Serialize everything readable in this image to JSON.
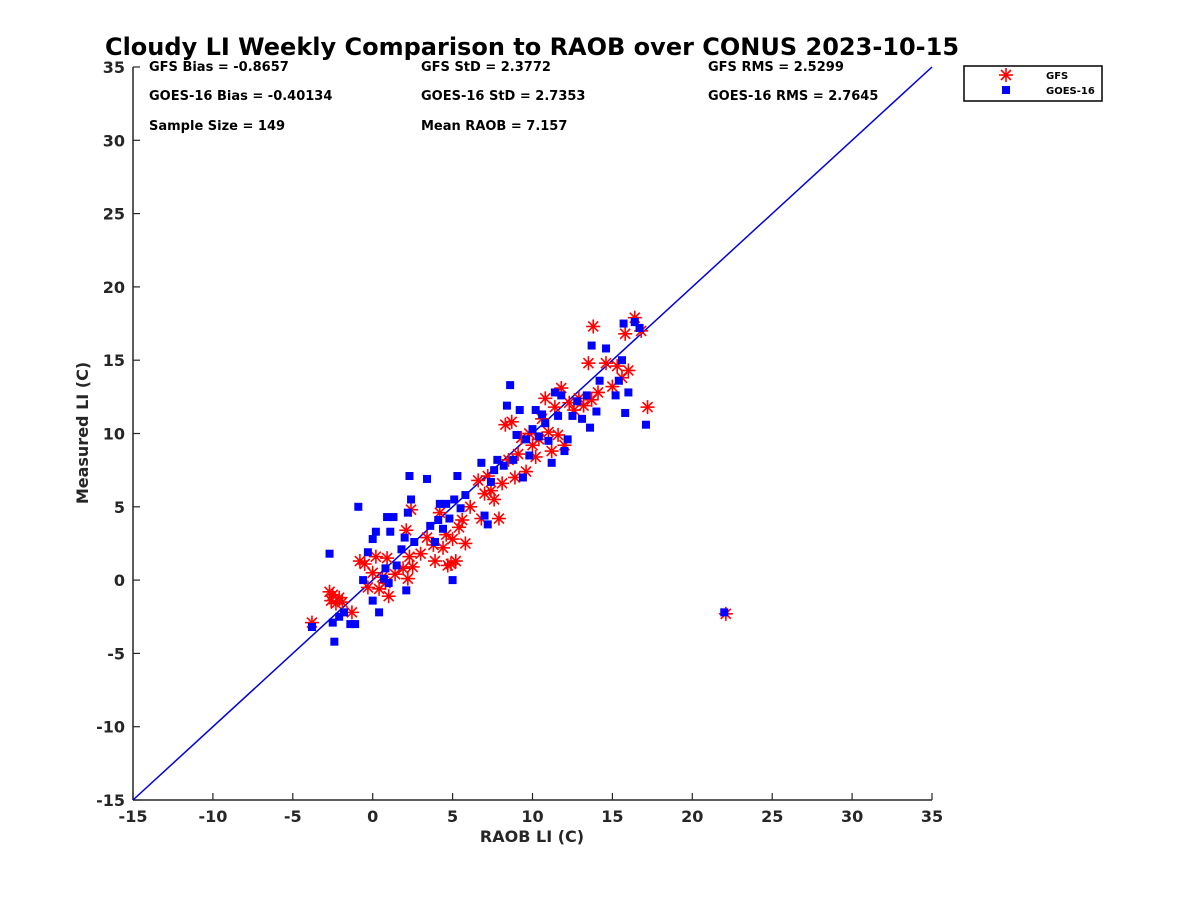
{
  "chart_data": {
    "type": "scatter",
    "title": "Cloudy LI Weekly Comparison to RAOB over CONUS 2023-10-15",
    "xlabel": "RAOB LI (C)",
    "ylabel": "Measured LI (C)",
    "xlim": [
      -15,
      35
    ],
    "ylim": [
      -15,
      35
    ],
    "xticks": [
      "-15",
      "-10",
      "-5",
      "0",
      "5",
      "10",
      "15",
      "20",
      "25",
      "30",
      "35"
    ],
    "yticks": [
      "-15",
      "-10",
      "-5",
      "0",
      "5",
      "10",
      "15",
      "20",
      "25",
      "30",
      "35"
    ],
    "grid": false,
    "legend_position": "top-right, outside plot",
    "reference_line": {
      "from": [
        -15,
        -15
      ],
      "to": [
        35,
        35
      ],
      "color": "#0000dd"
    },
    "stats": [
      {
        "id": "gfs-bias",
        "text": "GFS Bias = -0.8657"
      },
      {
        "id": "gfs-std",
        "text": "GFS StD = 2.3772"
      },
      {
        "id": "gfs-rms",
        "text": "GFS RMS = 2.5299"
      },
      {
        "id": "goes-bias",
        "text": "GOES-16 Bias = -0.40134"
      },
      {
        "id": "goes-std",
        "text": "GOES-16 StD = 2.7353"
      },
      {
        "id": "goes-rms",
        "text": "GOES-16 RMS = 2.7645"
      },
      {
        "id": "sample-size",
        "text": "Sample Size = 149"
      },
      {
        "id": "mean-raob",
        "text": "Mean RAOB = 7.157"
      }
    ],
    "series": [
      {
        "name": "GFS",
        "marker": "asterisk",
        "color": "#ff0000",
        "points": [
          [
            -3.8,
            -2.9
          ],
          [
            -2.7,
            -0.8
          ],
          [
            -2.5,
            -1.0
          ],
          [
            -2.6,
            -1.4
          ],
          [
            -2.3,
            -1.6
          ],
          [
            -2.1,
            -1.2
          ],
          [
            -1.9,
            -1.5
          ],
          [
            -1.3,
            -2.2
          ],
          [
            -0.8,
            1.3
          ],
          [
            -0.5,
            1.1
          ],
          [
            -0.3,
            -0.5
          ],
          [
            0,
            0.5
          ],
          [
            0.2,
            1.6
          ],
          [
            0.4,
            -0.6
          ],
          [
            0.6,
            0.2
          ],
          [
            0.8,
            -0.2
          ],
          [
            0.9,
            1.5
          ],
          [
            1.0,
            -1.1
          ],
          [
            1.4,
            0.4
          ],
          [
            1.9,
            0.8
          ],
          [
            2.1,
            3.4
          ],
          [
            2.2,
            0.1
          ],
          [
            2.3,
            1.6
          ],
          [
            2.4,
            4.8
          ],
          [
            2.5,
            0.9
          ],
          [
            3.0,
            1.8
          ],
          [
            3.4,
            2.9
          ],
          [
            3.8,
            2.4
          ],
          [
            3.9,
            1.3
          ],
          [
            4.2,
            4.6
          ],
          [
            4.4,
            2.2
          ],
          [
            4.6,
            3.1
          ],
          [
            4.7,
            1.0
          ],
          [
            4.9,
            1.1
          ],
          [
            5.0,
            2.8
          ],
          [
            5.2,
            1.3
          ],
          [
            5.4,
            3.6
          ],
          [
            5.6,
            4.1
          ],
          [
            5.8,
            2.5
          ],
          [
            6.1,
            5.0
          ],
          [
            6.6,
            6.8
          ],
          [
            6.8,
            4.2
          ],
          [
            7.0,
            5.9
          ],
          [
            7.2,
            7.1
          ],
          [
            7.4,
            6.1
          ],
          [
            7.6,
            5.5
          ],
          [
            7.9,
            4.2
          ],
          [
            8.1,
            6.6
          ],
          [
            8.3,
            10.6
          ],
          [
            8.5,
            8.2
          ],
          [
            8.7,
            10.8
          ],
          [
            8.9,
            7.0
          ],
          [
            9.1,
            8.6
          ],
          [
            9.3,
            9.7
          ],
          [
            9.6,
            7.4
          ],
          [
            9.8,
            10.0
          ],
          [
            10.0,
            9.2
          ],
          [
            10.2,
            8.4
          ],
          [
            10.4,
            9.6
          ],
          [
            10.6,
            11.0
          ],
          [
            10.8,
            12.4
          ],
          [
            11.0,
            10.1
          ],
          [
            11.2,
            8.8
          ],
          [
            11.4,
            11.8
          ],
          [
            11.6,
            9.9
          ],
          [
            11.8,
            13.1
          ],
          [
            12.0,
            9.2
          ],
          [
            12.3,
            12.1
          ],
          [
            12.6,
            11.6
          ],
          [
            12.9,
            12.4
          ],
          [
            13.2,
            11.9
          ],
          [
            13.5,
            14.8
          ],
          [
            13.8,
            17.3
          ],
          [
            13.7,
            12.3
          ],
          [
            14.1,
            12.8
          ],
          [
            14.6,
            14.8
          ],
          [
            15.0,
            13.2
          ],
          [
            15.3,
            14.6
          ],
          [
            15.6,
            13.8
          ],
          [
            15.8,
            16.8
          ],
          [
            16.0,
            14.3
          ],
          [
            16.4,
            17.9
          ],
          [
            16.8,
            17.0
          ],
          [
            17.2,
            11.8
          ],
          [
            22.1,
            -2.3
          ]
        ]
      },
      {
        "name": "GOES-16",
        "marker": "square",
        "color": "#0000ff",
        "points": [
          [
            -3.8,
            -3.2
          ],
          [
            -2.7,
            1.8
          ],
          [
            -2.5,
            -2.9
          ],
          [
            -2.4,
            -4.2
          ],
          [
            -2.1,
            -2.5
          ],
          [
            -1.8,
            -2.2
          ],
          [
            -1.4,
            -3.0
          ],
          [
            -1.1,
            -3.0
          ],
          [
            -0.9,
            5.0
          ],
          [
            -0.6,
            0.0
          ],
          [
            -0.3,
            1.9
          ],
          [
            0,
            2.8
          ],
          [
            0,
            -1.4
          ],
          [
            0.2,
            3.3
          ],
          [
            0.4,
            -2.2
          ],
          [
            0.7,
            0.1
          ],
          [
            0.8,
            0.8
          ],
          [
            0.9,
            4.3
          ],
          [
            1.0,
            -0.2
          ],
          [
            1.1,
            3.3
          ],
          [
            1.3,
            4.3
          ],
          [
            1.5,
            1.0
          ],
          [
            1.8,
            2.1
          ],
          [
            2.0,
            2.9
          ],
          [
            2.1,
            -0.7
          ],
          [
            2.2,
            4.6
          ],
          [
            2.3,
            7.1
          ],
          [
            2.4,
            5.5
          ],
          [
            2.6,
            2.6
          ],
          [
            3.4,
            6.9
          ],
          [
            3.6,
            3.7
          ],
          [
            3.9,
            2.6
          ],
          [
            4.1,
            4.1
          ],
          [
            4.2,
            5.2
          ],
          [
            4.4,
            3.5
          ],
          [
            4.6,
            5.2
          ],
          [
            4.8,
            4.2
          ],
          [
            5.0,
            0.0
          ],
          [
            5.1,
            5.5
          ],
          [
            5.3,
            7.1
          ],
          [
            5.5,
            4.9
          ],
          [
            5.8,
            5.8
          ],
          [
            6.8,
            8.0
          ],
          [
            7.0,
            4.4
          ],
          [
            7.2,
            3.8
          ],
          [
            7.4,
            6.7
          ],
          [
            7.6,
            7.5
          ],
          [
            7.8,
            8.2
          ],
          [
            8.2,
            7.8
          ],
          [
            8.4,
            11.9
          ],
          [
            8.6,
            13.3
          ],
          [
            8.8,
            8.2
          ],
          [
            9.0,
            9.9
          ],
          [
            9.2,
            11.6
          ],
          [
            9.4,
            7.0
          ],
          [
            9.6,
            9.6
          ],
          [
            9.8,
            8.5
          ],
          [
            10.0,
            10.3
          ],
          [
            10.2,
            11.6
          ],
          [
            10.4,
            9.8
          ],
          [
            10.6,
            11.3
          ],
          [
            10.8,
            10.7
          ],
          [
            11.0,
            9.5
          ],
          [
            11.2,
            8.0
          ],
          [
            11.4,
            12.8
          ],
          [
            11.6,
            11.2
          ],
          [
            11.8,
            12.6
          ],
          [
            12.0,
            8.8
          ],
          [
            12.2,
            9.6
          ],
          [
            12.5,
            11.2
          ],
          [
            12.8,
            12.2
          ],
          [
            13.1,
            11.0
          ],
          [
            13.4,
            12.6
          ],
          [
            13.6,
            10.4
          ],
          [
            13.7,
            16.0
          ],
          [
            14.0,
            11.5
          ],
          [
            14.2,
            13.6
          ],
          [
            14.6,
            15.8
          ],
          [
            15.2,
            12.6
          ],
          [
            15.4,
            13.6
          ],
          [
            15.6,
            15.0
          ],
          [
            15.7,
            17.5
          ],
          [
            15.8,
            11.4
          ],
          [
            16.0,
            12.8
          ],
          [
            16.4,
            17.6
          ],
          [
            16.7,
            17.2
          ],
          [
            17.1,
            10.6
          ],
          [
            22.0,
            -2.2
          ]
        ]
      }
    ]
  }
}
